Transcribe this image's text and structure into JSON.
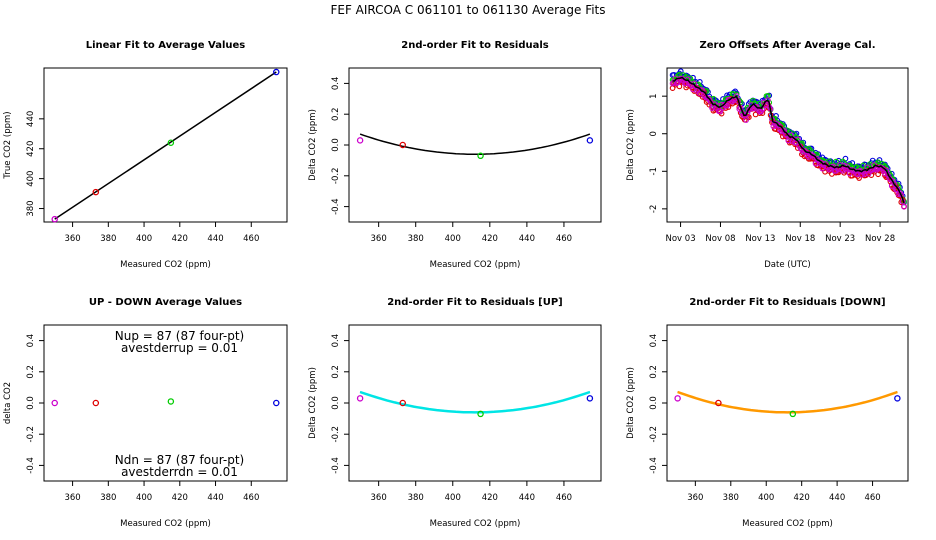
{
  "figure_title": "FEF   AIRCOA C   061101 to 061130   Average Fits",
  "colors": {
    "p1": "#cc00cc",
    "p2": "#dd0000",
    "p3": "#00cc00",
    "p4": "#0000dd",
    "fit_black": "#000000",
    "fit_up": "#00e5e5",
    "fit_down": "#ff9900"
  },
  "chart_data": [
    {
      "id": "p1",
      "type": "scatter",
      "title": "Linear Fit to Average Values",
      "xlabel": "Measured CO2 (ppm)",
      "ylabel": "True CO2 (ppm)",
      "xlim": [
        344,
        480
      ],
      "ylim": [
        371,
        474
      ],
      "xticks": [
        360,
        380,
        400,
        420,
        440,
        460
      ],
      "yticks": [
        380,
        400,
        420,
        440
      ],
      "fit_line": [
        [
          350,
          372.9
        ],
        [
          474,
          471.3
        ]
      ],
      "points": [
        {
          "x": 350,
          "y": 372.9,
          "c": "p1"
        },
        {
          "x": 373,
          "y": 391.0,
          "c": "p2"
        },
        {
          "x": 415,
          "y": 424.0,
          "c": "p3"
        },
        {
          "x": 474,
          "y": 471.3,
          "c": "p4"
        }
      ]
    },
    {
      "id": "p2",
      "type": "scatter",
      "title": "2nd-order Fit to Residuals",
      "xlabel": "Measured CO2 (ppm)",
      "ylabel": "Delta CO2 (ppm)",
      "xlim": [
        344,
        480
      ],
      "ylim": [
        -0.5,
        0.5
      ],
      "xticks": [
        360,
        380,
        400,
        420,
        440,
        460
      ],
      "yticks": [
        -0.4,
        -0.2,
        0.0,
        0.2,
        0.4
      ],
      "curve": {
        "x0": 350,
        "x1": 474,
        "a": 3.4e-05,
        "xv": 412,
        "yv": -0.06,
        "c": "fit_black"
      },
      "points": [
        {
          "x": 350,
          "y": 0.03,
          "c": "p1"
        },
        {
          "x": 373,
          "y": 0.0,
          "c": "p2"
        },
        {
          "x": 415,
          "y": -0.07,
          "c": "p3"
        },
        {
          "x": 474,
          "y": 0.03,
          "c": "p4"
        }
      ]
    },
    {
      "id": "p3",
      "type": "line",
      "title": "Zero Offsets After Average Cal.",
      "xlabel": "Date (UTC)",
      "ylabel": "Delta CO2 (ppm)",
      "xlim": [
        0.3,
        30.5
      ],
      "ylim": [
        -2.35,
        1.75
      ],
      "xticks": [
        2,
        7,
        12,
        17,
        22,
        27
      ],
      "xticklabels": [
        "Nov 03",
        "Nov 08",
        "Nov 13",
        "Nov 18",
        "Nov 23",
        "Nov 28"
      ],
      "yticks": [
        -2,
        -1,
        0,
        1
      ],
      "series_spread": [
        {
          "c": "p4",
          "off": 0.14
        },
        {
          "c": "p3",
          "off": 0.09
        },
        {
          "c": "p2",
          "off": -0.06
        },
        {
          "c": "p1",
          "off": 0.0
        }
      ],
      "trend": [
        [
          1.0,
          1.35
        ],
        [
          2.0,
          1.45
        ],
        [
          3.0,
          1.35
        ],
        [
          4.0,
          1.2
        ],
        [
          5.0,
          1.05
        ],
        [
          6.0,
          0.75
        ],
        [
          7.0,
          0.65
        ],
        [
          8.0,
          0.85
        ],
        [
          9.0,
          0.95
        ],
        [
          10.0,
          0.4
        ],
        [
          11.0,
          0.75
        ],
        [
          12.0,
          0.6
        ],
        [
          13.0,
          0.9
        ],
        [
          13.5,
          0.3
        ],
        [
          14.5,
          0.15
        ],
        [
          15.5,
          -0.1
        ],
        [
          16.5,
          -0.2
        ],
        [
          17.5,
          -0.5
        ],
        [
          18.5,
          -0.6
        ],
        [
          19.5,
          -0.8
        ],
        [
          20.5,
          -0.9
        ],
        [
          21.5,
          -0.95
        ],
        [
          22.5,
          -0.9
        ],
        [
          23.5,
          -1.0
        ],
        [
          24.5,
          -1.05
        ],
        [
          25.5,
          -1.0
        ],
        [
          26.5,
          -0.9
        ],
        [
          27.5,
          -0.95
        ],
        [
          28.5,
          -1.3
        ],
        [
          29.5,
          -1.6
        ],
        [
          30.0,
          -1.9
        ]
      ]
    },
    {
      "id": "p4",
      "type": "scatter",
      "title": "UP - DOWN Average Values",
      "xlabel": "Measured CO2 (ppm)",
      "ylabel": "delta CO2",
      "xlim": [
        344,
        480
      ],
      "ylim": [
        -0.5,
        0.5
      ],
      "xticks": [
        360,
        380,
        400,
        420,
        440,
        460
      ],
      "yticks": [
        -0.4,
        -0.2,
        0.0,
        0.2,
        0.4
      ],
      "points": [
        {
          "x": 350,
          "y": 0.0,
          "c": "p1"
        },
        {
          "x": 373,
          "y": 0.0,
          "c": "p2"
        },
        {
          "x": 415,
          "y": 0.01,
          "c": "p3"
        },
        {
          "x": 474,
          "y": 0.0,
          "c": "p4"
        }
      ],
      "annotations": [
        "Nup = 87 (87 four-pt)",
        "avestderrup =  0.01",
        "Ndn = 87 (87 four-pt)",
        "avestderrdn =  0.01"
      ]
    },
    {
      "id": "p5",
      "type": "scatter",
      "title": "2nd-order Fit to Residuals [UP]",
      "xlabel": "Measured CO2 (ppm)",
      "ylabel": "Delta CO2 (ppm)",
      "xlim": [
        344,
        480
      ],
      "ylim": [
        -0.5,
        0.5
      ],
      "xticks": [
        360,
        380,
        400,
        420,
        440,
        460
      ],
      "yticks": [
        -0.4,
        -0.2,
        0.0,
        0.2,
        0.4
      ],
      "curve": {
        "x0": 350,
        "x1": 474,
        "a": 3.4e-05,
        "xv": 412,
        "yv": -0.06,
        "c": "fit_up"
      },
      "points": [
        {
          "x": 350,
          "y": 0.03,
          "c": "p1"
        },
        {
          "x": 373,
          "y": 0.0,
          "c": "p2"
        },
        {
          "x": 415,
          "y": -0.07,
          "c": "p3"
        },
        {
          "x": 474,
          "y": 0.03,
          "c": "p4"
        }
      ]
    },
    {
      "id": "p6",
      "type": "scatter",
      "title": "2nd-order Fit to Residuals [DOWN]",
      "xlabel": "Measured CO2 (ppm)",
      "ylabel": "Delta CO2 (ppm)",
      "xlim": [
        344,
        480
      ],
      "ylim": [
        -0.5,
        0.5
      ],
      "xticks": [
        360,
        380,
        400,
        420,
        440,
        460
      ],
      "yticks": [
        -0.4,
        -0.2,
        0.0,
        0.2,
        0.4
      ],
      "curve": {
        "x0": 350,
        "x1": 474,
        "a": 3.4e-05,
        "xv": 412,
        "yv": -0.06,
        "c": "fit_down"
      },
      "points": [
        {
          "x": 350,
          "y": 0.03,
          "c": "p1"
        },
        {
          "x": 373,
          "y": 0.0,
          "c": "p2"
        },
        {
          "x": 415,
          "y": -0.07,
          "c": "p3"
        },
        {
          "x": 474,
          "y": 0.03,
          "c": "p4"
        }
      ]
    }
  ]
}
